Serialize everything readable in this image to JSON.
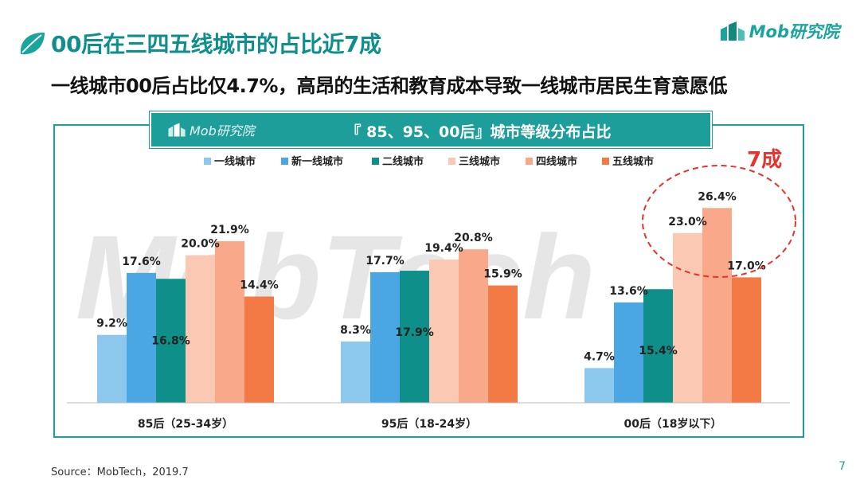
{
  "header": {
    "title": "00后在三四五线城市的占比近7成",
    "subtitle": "一线城市00后占比仅4.7%，高昂的生活和教育成本导致一线城市居民生育意愿低",
    "brand": "Mob研究院"
  },
  "banner": {
    "logo_text": "Mob研究院",
    "title": "『 85、95、00后』城市等级分布占比"
  },
  "annotation": {
    "text": "7成",
    "color": "#e8322c"
  },
  "watermark": "MobTech",
  "footer": {
    "source": "Source：MobTech，2019.7",
    "page": "7"
  },
  "colors": {
    "accent": "#1e9e9a",
    "series": [
      "#8cc7ee",
      "#4ba7e4",
      "#0f8f8a",
      "#fbc9b3",
      "#f9a98a",
      "#f47a45"
    ]
  },
  "chart_data": {
    "type": "bar",
    "categories": [
      "85后（25-34岁）",
      "95后（18-24岁）",
      "00后（18岁以下）"
    ],
    "series": [
      {
        "name": "一线城市",
        "values": [
          9.2,
          8.3,
          4.7
        ]
      },
      {
        "name": "新一线城市",
        "values": [
          17.6,
          17.7,
          13.6
        ]
      },
      {
        "name": "二线城市",
        "values": [
          16.8,
          17.9,
          15.4
        ]
      },
      {
        "name": "三线城市",
        "values": [
          20.0,
          19.4,
          23.0
        ]
      },
      {
        "name": "四线城市",
        "values": [
          21.9,
          20.8,
          26.4
        ]
      },
      {
        "name": "五线城市",
        "values": [
          14.4,
          15.9,
          17.0
        ]
      }
    ],
    "unit": "%",
    "ylim": [
      0,
      30
    ],
    "legend": "top",
    "grid": false
  }
}
